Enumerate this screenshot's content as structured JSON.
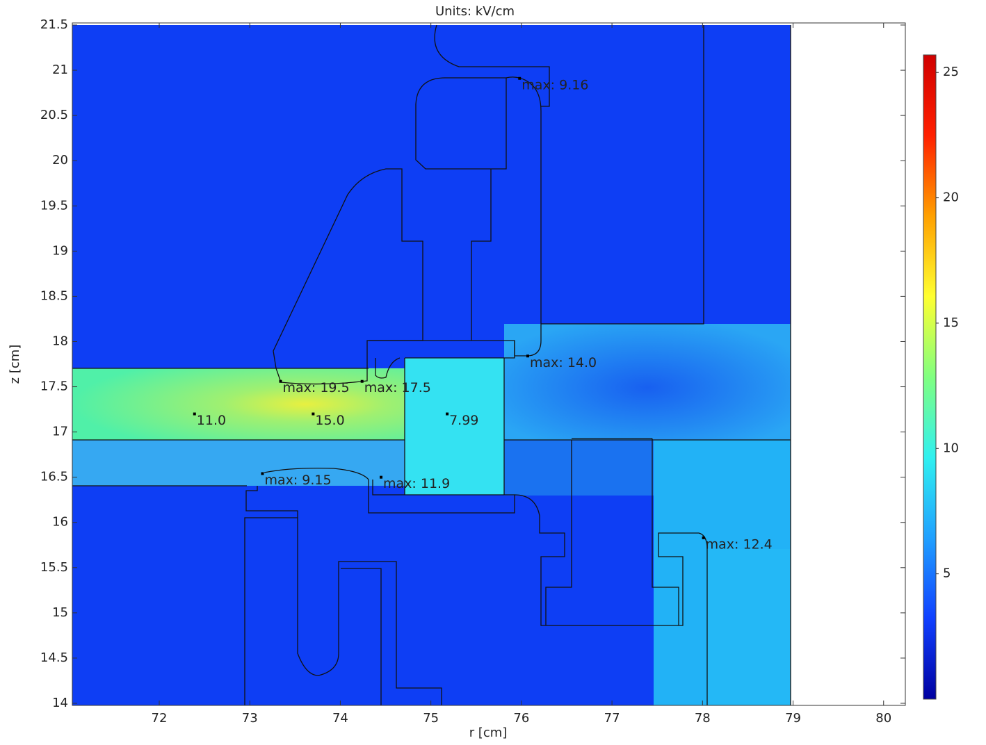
{
  "chart_data": {
    "type": "surface",
    "title": "Units: kV/cm",
    "xlabel": "r [cm]",
    "ylabel": "z [cm]",
    "xlim": [
      71.04,
      80.24
    ],
    "ylim": [
      14,
      21.5
    ],
    "xticks": [
      72,
      73,
      74,
      75,
      76,
      77,
      78,
      79,
      80
    ],
    "yticks": [
      14,
      14.5,
      15,
      15.5,
      16,
      16.5,
      17,
      17.5,
      18,
      18.5,
      19,
      19.5,
      20,
      20.5,
      21,
      21.5
    ],
    "colorbar": {
      "lim": [
        0,
        25.7
      ],
      "ticks": [
        5,
        10,
        15,
        20,
        25
      ],
      "colors": [
        "#0000a0",
        "#1040ff",
        "#20a0ff",
        "#30f0f0",
        "#80ff80",
        "#ffff30",
        "#ffa000",
        "#ff2000",
        "#d00000"
      ]
    },
    "annotations": [
      {
        "x": 75.98,
        "y": 20.91,
        "text": "max: 9.16"
      },
      {
        "x": 73.34,
        "y": 17.56,
        "text": "max: 19.5"
      },
      {
        "x": 74.24,
        "y": 17.56,
        "text": "max: 17.5"
      },
      {
        "x": 72.39,
        "y": 17.2,
        "text": "11.0"
      },
      {
        "x": 73.7,
        "y": 17.2,
        "text": "15.0"
      },
      {
        "x": 75.18,
        "y": 17.2,
        "text": "7.99"
      },
      {
        "x": 76.07,
        "y": 17.84,
        "text": "max: 14.0"
      },
      {
        "x": 73.14,
        "y": 16.54,
        "text": "max: 9.15"
      },
      {
        "x": 74.45,
        "y": 16.5,
        "text": "max: 11.9"
      },
      {
        "x": 78.01,
        "y": 15.83,
        "text": "max: 12.4"
      }
    ]
  }
}
